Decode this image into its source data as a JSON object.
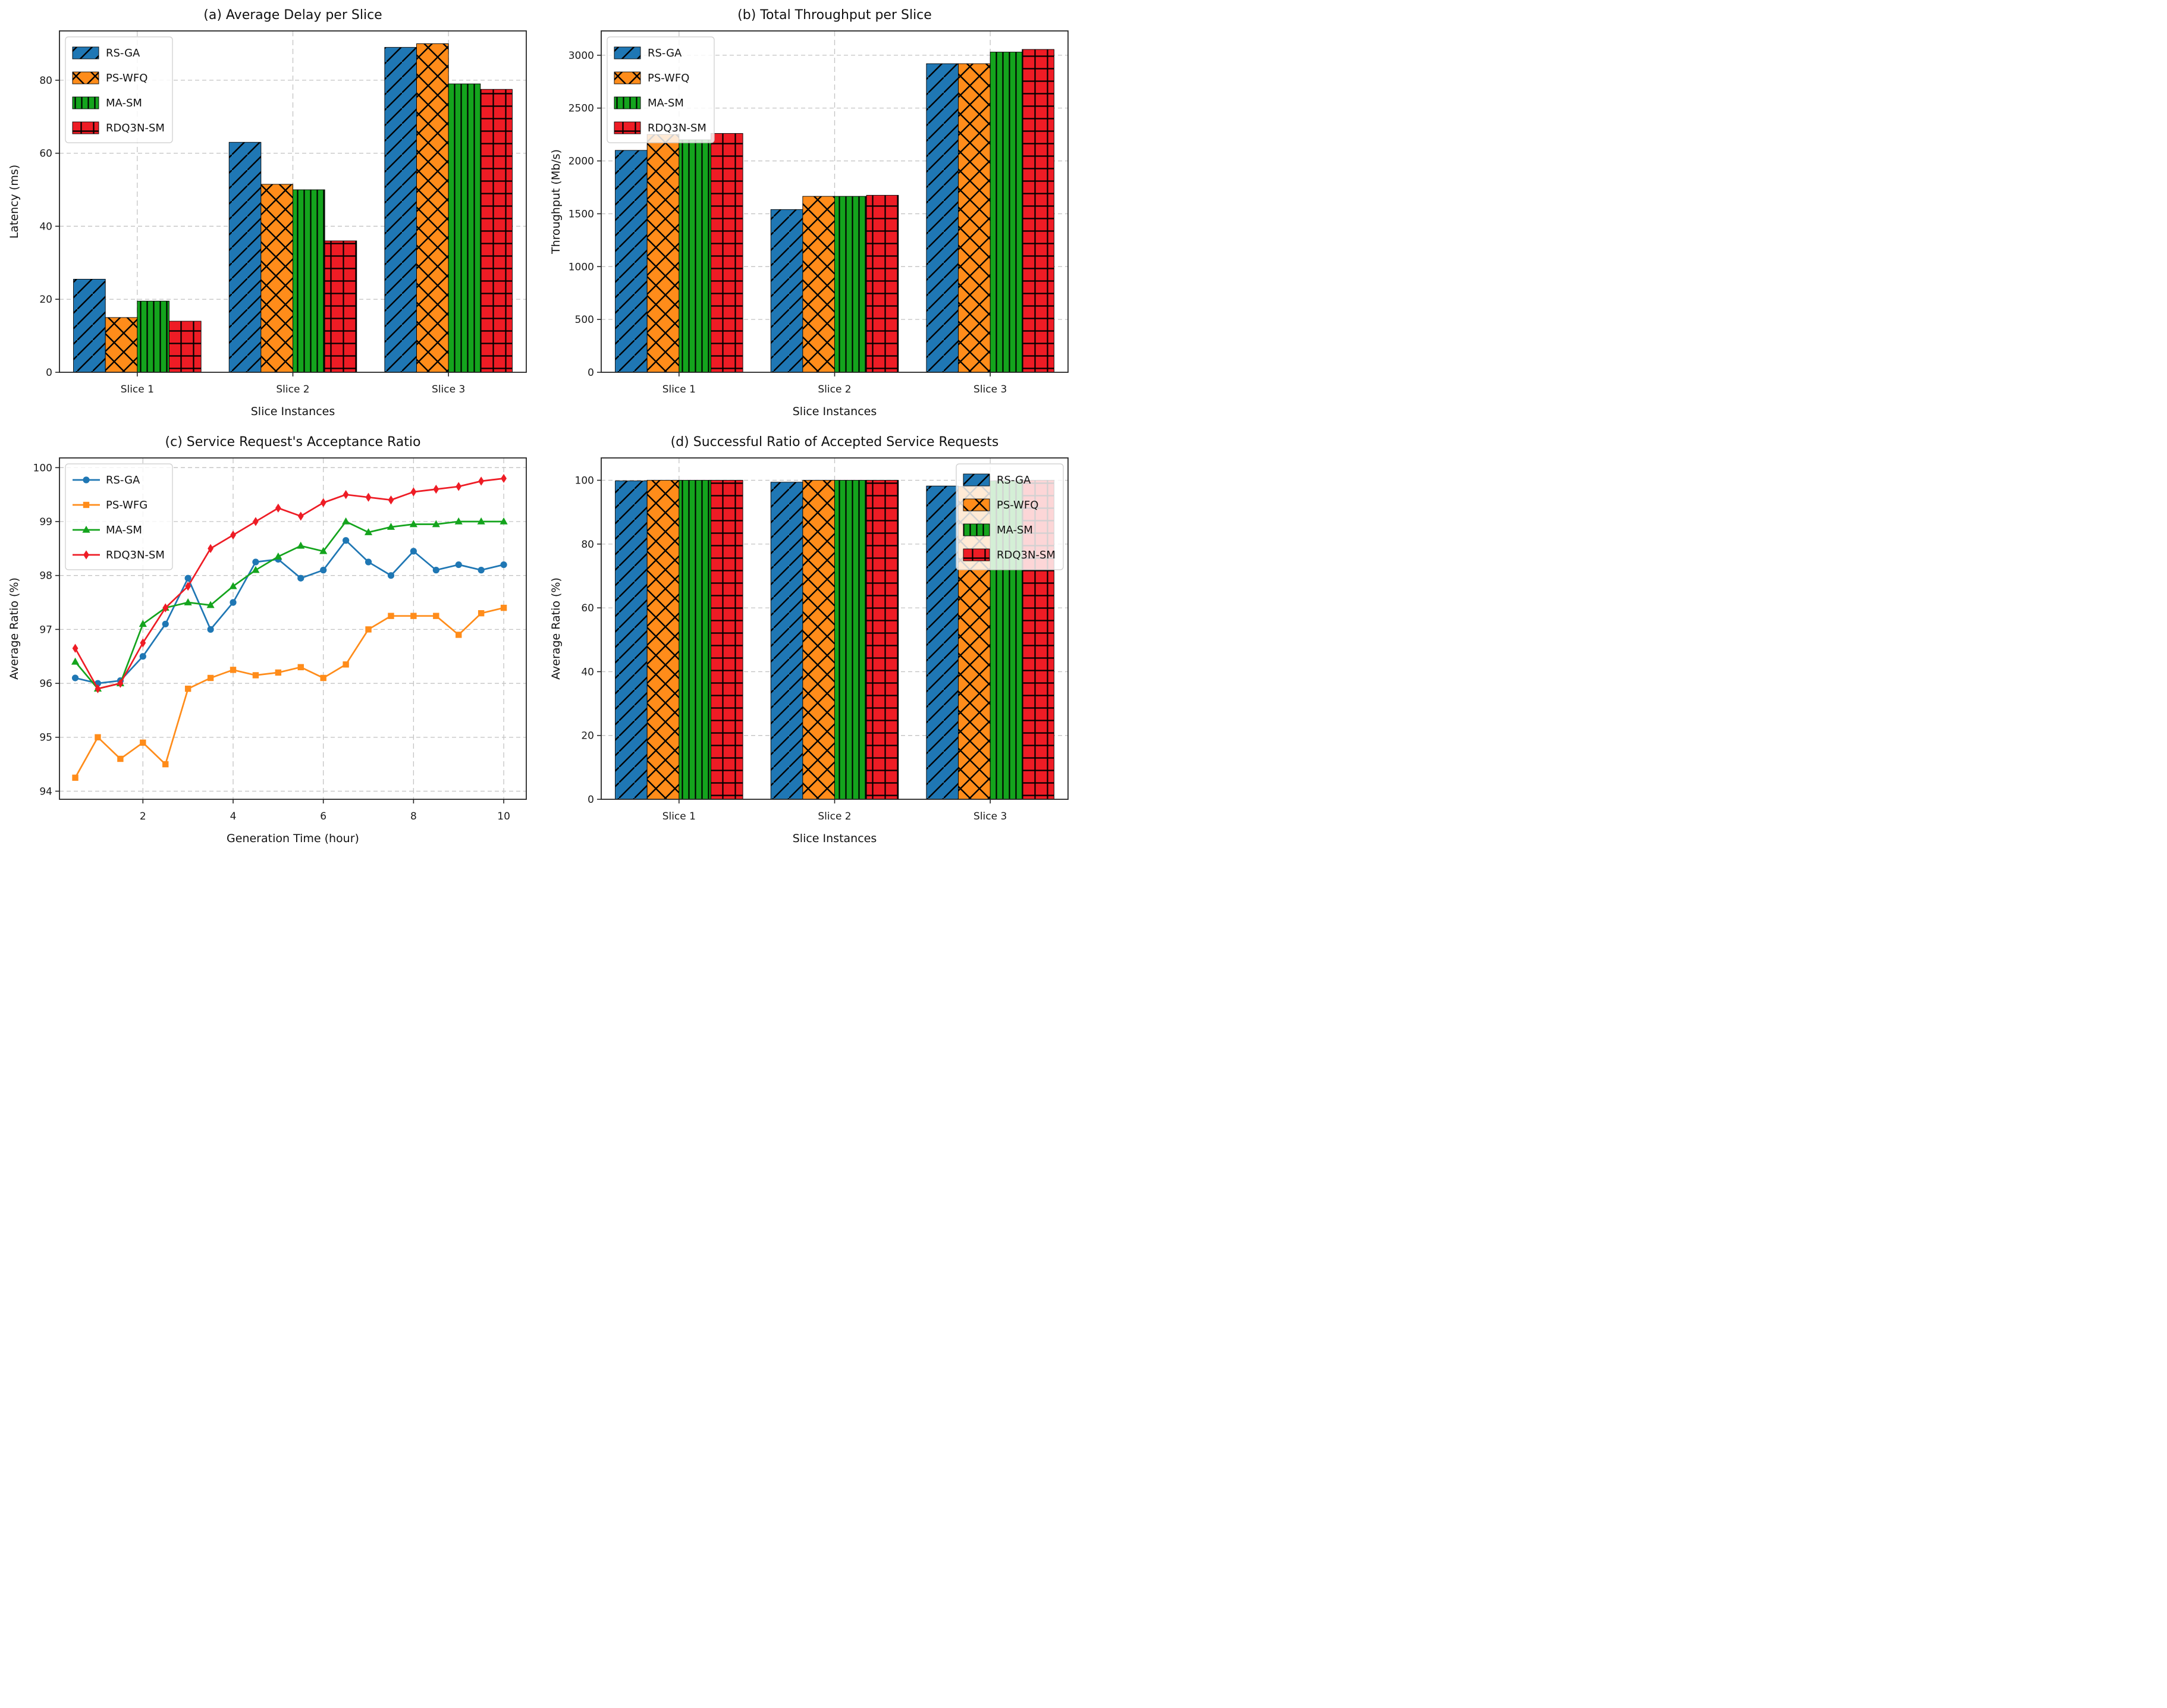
{
  "figure": {
    "background": "#ffffff"
  },
  "colors": {
    "blue": "#1f77b4",
    "orange": "#ff8c1a",
    "green": "#14a41d",
    "red": "#ee1c25",
    "grid": "#c3c3c3",
    "axis": "#262626",
    "legend_border": "#cccccc",
    "legend_fill_opacity": 0.82,
    "hatch": "#000000"
  },
  "chart_data": [
    {
      "id": "a",
      "type": "bar",
      "title": "(a) Average Delay per Slice",
      "xlabel": "Slice Instances",
      "ylabel": "Latency (ms)",
      "categories": [
        "Slice 1",
        "Slice 2",
        "Slice 3"
      ],
      "yticks": [
        0,
        20,
        40,
        60,
        80
      ],
      "ylim": [
        0,
        93.5
      ],
      "grid": true,
      "legend_pos": "upper-left",
      "series": [
        {
          "name": "RS-GA",
          "color_key": "blue",
          "hatch": "diag",
          "values": [
            25.5,
            63.0,
            89.0
          ]
        },
        {
          "name": "PS-WFQ",
          "color_key": "orange",
          "hatch": "cross",
          "values": [
            15.0,
            51.5,
            90.0
          ]
        },
        {
          "name": "MA-SM",
          "color_key": "green",
          "hatch": "vert",
          "values": [
            19.5,
            50.0,
            79.0
          ]
        },
        {
          "name": "RDQ3N-SM",
          "color_key": "red",
          "hatch": "plus",
          "values": [
            14.0,
            36.0,
            77.5
          ]
        }
      ]
    },
    {
      "id": "b",
      "type": "bar",
      "title": "(b) Total Throughput per Slice",
      "xlabel": "Slice Instances",
      "ylabel": "Throughput (Mb/s)",
      "categories": [
        "Slice 1",
        "Slice 2",
        "Slice 3"
      ],
      "yticks": [
        0,
        500,
        1000,
        1500,
        2000,
        2500,
        3000
      ],
      "ylim": [
        0,
        3230
      ],
      "grid": true,
      "legend_pos": "upper-left",
      "series": [
        {
          "name": "RS-GA",
          "color_key": "blue",
          "hatch": "diag",
          "values": [
            2100,
            1540,
            2920
          ]
        },
        {
          "name": "PS-WFQ",
          "color_key": "orange",
          "hatch": "cross",
          "values": [
            2250,
            1665,
            2920
          ]
        },
        {
          "name": "MA-SM",
          "color_key": "green",
          "hatch": "vert",
          "values": [
            2200,
            1665,
            3030
          ]
        },
        {
          "name": "RDQ3N-SM",
          "color_key": "red",
          "hatch": "plus",
          "values": [
            2260,
            1675,
            3055
          ]
        }
      ]
    },
    {
      "id": "c",
      "type": "line",
      "title": "(c) Service Request's Acceptance Ratio",
      "xlabel": "Generation Time (hour)",
      "ylabel": "Average Ratio (%)",
      "x": [
        0.5,
        1,
        1.5,
        2,
        2.5,
        3,
        3.5,
        4,
        4.5,
        5,
        5.5,
        6,
        6.5,
        7,
        7.5,
        8,
        8.5,
        9,
        9.5,
        10
      ],
      "xticks": [
        2,
        4,
        6,
        8,
        10
      ],
      "xlim": [
        0.15,
        10.5
      ],
      "yticks": [
        94,
        95,
        96,
        97,
        98,
        99,
        100
      ],
      "ylim": [
        93.85,
        100.18
      ],
      "grid": true,
      "legend_pos": "upper-left",
      "series": [
        {
          "name": "RS-GA",
          "color_key": "blue",
          "marker": "circle",
          "values": [
            96.1,
            96.0,
            96.05,
            96.5,
            97.1,
            97.95,
            97.0,
            97.5,
            98.25,
            98.3,
            97.95,
            98.1,
            98.65,
            98.25,
            98.0,
            98.45,
            98.1,
            98.2,
            98.1,
            98.2
          ]
        },
        {
          "name": "PS-WFG",
          "color_key": "orange",
          "marker": "square",
          "values": [
            94.25,
            95.0,
            94.6,
            94.9,
            94.5,
            95.9,
            96.1,
            96.25,
            96.15,
            96.2,
            96.3,
            96.1,
            96.35,
            97.0,
            97.25,
            97.25,
            97.25,
            96.9,
            97.3,
            97.4
          ]
        },
        {
          "name": "MA-SM",
          "color_key": "green",
          "marker": "triangle",
          "values": [
            96.4,
            95.9,
            96.0,
            97.1,
            97.4,
            97.5,
            97.45,
            97.8,
            98.1,
            98.35,
            98.55,
            98.45,
            99.0,
            98.8,
            98.9,
            98.95,
            98.95,
            99.0,
            99.0,
            99.0
          ]
        },
        {
          "name": "RDQ3N-SM",
          "color_key": "red",
          "marker": "diamond",
          "values": [
            96.65,
            95.9,
            96.0,
            96.75,
            97.4,
            97.8,
            98.5,
            98.75,
            99.0,
            99.25,
            99.1,
            99.35,
            99.5,
            99.45,
            99.4,
            99.55,
            99.6,
            99.65,
            99.75,
            99.8
          ]
        }
      ]
    },
    {
      "id": "d",
      "type": "bar",
      "title": "(d) Successful Ratio of Accepted Service Requests",
      "xlabel": "Slice Instances",
      "ylabel": "Average Ratio (%)",
      "categories": [
        "Slice 1",
        "Slice 2",
        "Slice 3"
      ],
      "yticks": [
        0,
        20,
        40,
        60,
        80,
        100
      ],
      "ylim": [
        0,
        107
      ],
      "grid": true,
      "legend_pos": "upper-right",
      "series": [
        {
          "name": "RS-GA",
          "color_key": "blue",
          "hatch": "diag",
          "values": [
            99.8,
            99.4,
            98.2
          ]
        },
        {
          "name": "PS-WFQ",
          "color_key": "orange",
          "hatch": "cross",
          "values": [
            100,
            100,
            98.0
          ]
        },
        {
          "name": "MA-SM",
          "color_key": "green",
          "hatch": "vert",
          "values": [
            100,
            100,
            99.8
          ]
        },
        {
          "name": "RDQ3N-SM",
          "color_key": "red",
          "hatch": "plus",
          "values": [
            100,
            100,
            100
          ]
        }
      ]
    }
  ]
}
